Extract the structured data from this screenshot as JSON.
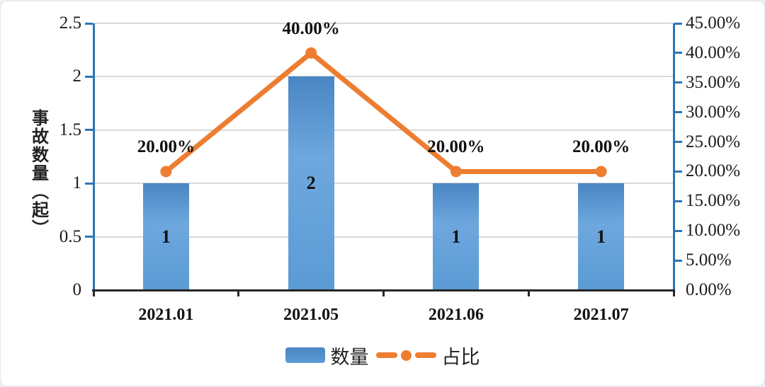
{
  "colors": {
    "bar": "#5B9BD5",
    "bar_dark": "#4A86C4",
    "bar_light": "#6EA7DE",
    "line": "#ED7D31",
    "axis": "#2E75B6",
    "grid": "#D9D9D9",
    "x_axis": "#262626",
    "text": "#1A1A1A"
  },
  "chart_data": {
    "type": "bar+line",
    "categories": [
      "2021.01",
      "2021.05",
      "2021.06",
      "2021.07"
    ],
    "series": [
      {
        "name": "数量",
        "type": "bar",
        "axis": "left",
        "values": [
          1,
          2,
          1,
          1
        ],
        "labels": [
          "1",
          "2",
          "1",
          "1"
        ]
      },
      {
        "name": "占比",
        "type": "line",
        "axis": "right",
        "values": [
          0.2,
          0.4,
          0.2,
          0.2
        ],
        "labels": [
          "20.00%",
          "40.00%",
          "20.00%",
          "20.00%"
        ]
      }
    ],
    "left_axis": {
      "title": "事故数量（起）",
      "min": 0,
      "max": 2.5,
      "step": 0.5,
      "ticks": [
        "2.5",
        "2",
        "1.5",
        "1",
        "0.5",
        "0"
      ]
    },
    "right_axis": {
      "min": 0,
      "max": 0.45,
      "step": 0.05,
      "ticks": [
        "45.00%",
        "40.00%",
        "35.00%",
        "30.00%",
        "25.00%",
        "20.00%",
        "15.00%",
        "10.00%",
        "5.00%",
        "0.00%"
      ]
    },
    "legend": [
      {
        "label": "数量",
        "type": "bar"
      },
      {
        "label": "占比",
        "type": "line"
      }
    ],
    "legend_position": "bottom",
    "grid": true
  }
}
